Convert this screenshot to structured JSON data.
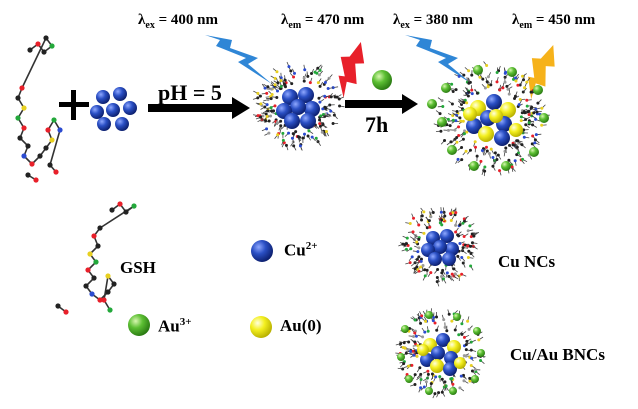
{
  "top": {
    "ex1": {
      "symbol": "λ",
      "sub": "ex",
      "value": "= 400 nm"
    },
    "em1": {
      "symbol": "λ",
      "sub": "em",
      "value": "= 470 nm"
    },
    "ex2": {
      "symbol": "λ",
      "sub": "ex",
      "value": "= 380 nm"
    },
    "em2": {
      "symbol": "λ",
      "sub": "em",
      "value": "= 450 nm"
    },
    "plus": "+",
    "ph": "pH = 5",
    "time": "7h"
  },
  "legend": {
    "gsh": "GSH",
    "cu": {
      "base": "Cu",
      "sup": "2+"
    },
    "cu_ncs": "Cu NCs",
    "au3": {
      "base": "Au",
      "sup": "3+"
    },
    "au0": "Au(0)",
    "cuau": "Cu/Au BNCs"
  },
  "colors": {
    "cu": "#1f3fa8",
    "au0": "#f2ee1a",
    "au3": "#55b82e",
    "excitation": "#2f86d6",
    "emission1": "#e8202a",
    "emission2": "#f6b21a",
    "arrow": "#000000"
  },
  "icons": [
    "lightning-bolt-icon",
    "gsh-molecule-icon",
    "sphere-icon"
  ]
}
